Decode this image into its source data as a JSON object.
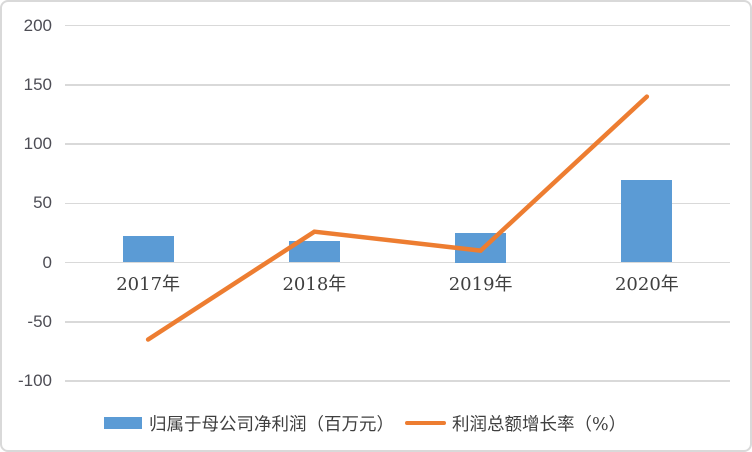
{
  "chart_data": {
    "type": "combo-bar-line",
    "title": "",
    "xlabel": "",
    "ylabel": "",
    "categories": [
      "2017年",
      "2018年",
      "2019年",
      "2020年"
    ],
    "series": [
      {
        "name": "归属于母公司净利润（百万元）",
        "type": "bar",
        "color": "#5B9BD5",
        "values": [
          22,
          18,
          25,
          70
        ]
      },
      {
        "name": "利润总额增长率（%）",
        "type": "line",
        "color": "#ED7D31",
        "values": [
          -65,
          26,
          10,
          140
        ]
      }
    ],
    "y_ticks": [
      200,
      150,
      100,
      50,
      0,
      -50,
      -100
    ],
    "ylim": [
      -100,
      200
    ],
    "grid": true,
    "legend_position": "bottom"
  },
  "legend": {
    "bar_label": "归属于母公司净利润（百万元）",
    "line_label": "利润总额增长率（%）"
  },
  "colors": {
    "bar": "#5B9BD5",
    "line": "#ED7D31",
    "gridline": "#D9D9D9",
    "axis_text": "#4D4D55",
    "label_text": "#3F3F3F",
    "background": "#FFFFFF",
    "border": "#D9D9D9"
  }
}
